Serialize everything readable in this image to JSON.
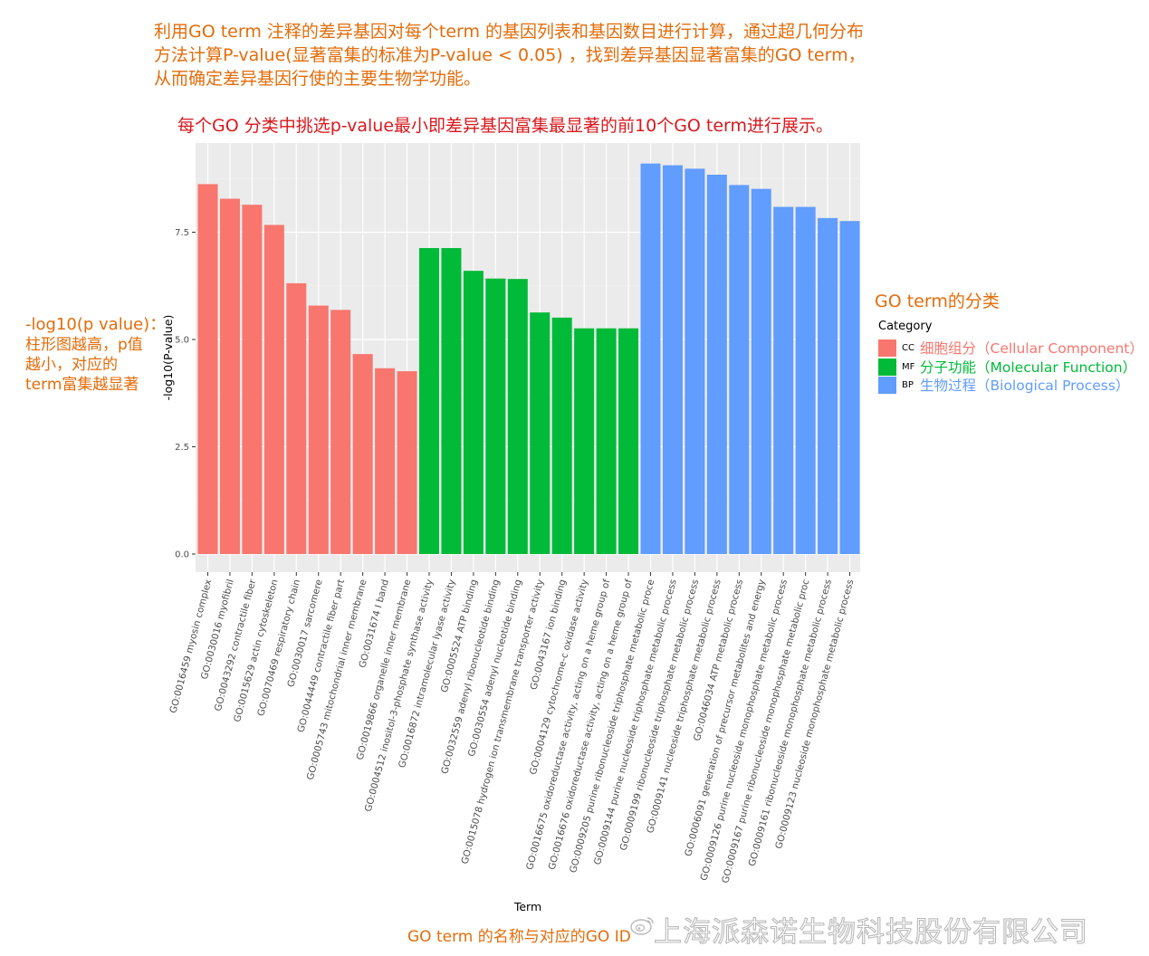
{
  "annotations": {
    "top_note_lines": [
      "利用GO term 注释的差异基因对每个term 的基因列表和基因数目进行计算，通过超几何分布",
      "方法计算P-value(显著富集的标准为P-value < 0.05) ，找到差异基因显著富集的GO term，",
      "从而确定差异基因行使的主要生物学功能。"
    ],
    "sub_note": "每个GO 分类中挑选p-value最小即差异基因富集最显著的前10个GO term进行展示。",
    "left_note_lines": [
      "-log10(p value)：",
      "柱形图越高，p值",
      "越小，对应的",
      "term富集越显著"
    ],
    "legend_heading": "GO term的分类",
    "bottom_note": "GO term 的名称与对应的GO ID",
    "watermark": "上海派森诺生物科技股份有限公司",
    "watermark_icon": "weibo-icon",
    "note_color": "#e36c0a",
    "sub_note_color": "#d9181d"
  },
  "chart_data": {
    "type": "bar",
    "title": "",
    "xlabel": "Term",
    "ylabel": "-log10(P-value)",
    "ylim": [
      0,
      9.3
    ],
    "yticks": [
      0.0,
      2.5,
      5.0,
      7.5
    ],
    "ytick_labels": [
      "0.0",
      "2.5",
      "5.0",
      "7.5"
    ],
    "grid": true,
    "panel_background": "#ebebeb",
    "legend": {
      "title": "Category",
      "placement": "right",
      "entries": [
        {
          "key": "CC",
          "description": "细胞组分（Cellular Component）",
          "color": "#f8766d"
        },
        {
          "key": "MF",
          "description": "分子功能（Molecular Function）",
          "color": "#00ba38"
        },
        {
          "key": "BP",
          "description": "生物过程（Biological Process）",
          "color": "#619cff"
        }
      ]
    },
    "categories": [
      "GO:0016459 myosin complex",
      "GO:0030016 myofibril",
      "GO:0043292 contractile fiber",
      "GO:0015629 actin cytoskeleton",
      "GO:0070469 respiratory chain",
      "GO:0030017 sarcomere",
      "GO:0044449 contractile fiber part",
      "GO:0005743 mitochondrial inner membrane",
      "GO:0031674 I band",
      "GO:0019866 organelle inner membrane",
      "GO:0004512 inositol-3-phosphate synthase activity",
      "GO:0016872 intramolecular lyase activity",
      "GO:0005524 ATP binding",
      "GO:0032559 adenyl ribonucleotide binding",
      "GO:0030554 adenyl nucleotide binding",
      "GO:0015078 hydrogen ion transmembrane transporter activity",
      "GO:0043167 ion binding",
      "GO:0004129 cytochrome-c oxidase activity",
      "GO:0016675 oxidoreductase activity, acting on a heme group of",
      "GO:0016676 oxidoreductase activity, acting on a heme group of",
      "GO:0009205 purine ribonucleoside triphosphate metabolic proce",
      "GO:0009144 purine nucleoside triphosphate metabolic process",
      "GO:0009199 ribonucleoside triphosphate metabolic process",
      "GO:0009141 nucleoside triphosphate metabolic process",
      "GO:0046034 ATP metabolic process",
      "GO:0006091 generation of precursor metabolites and energy",
      "GO:0009126 purine nucleoside monophosphate metabolic process",
      "GO:0009167 purine ribonucleoside monophosphate metabolic proc",
      "GO:0009161 ribonucleoside monophosphate metabolic process",
      "GO:0009123 nucleoside monophosphate metabolic process"
    ],
    "values": [
      8.62,
      8.28,
      8.14,
      7.67,
      6.31,
      5.79,
      5.69,
      4.66,
      4.33,
      4.26,
      7.13,
      7.13,
      6.6,
      6.42,
      6.41,
      5.63,
      5.51,
      5.26,
      5.26,
      5.26,
      9.1,
      9.06,
      8.98,
      8.84,
      8.6,
      8.51,
      8.09,
      8.09,
      7.83,
      7.76
    ],
    "category_group": [
      "CC",
      "CC",
      "CC",
      "CC",
      "CC",
      "CC",
      "CC",
      "CC",
      "CC",
      "CC",
      "MF",
      "MF",
      "MF",
      "MF",
      "MF",
      "MF",
      "MF",
      "MF",
      "MF",
      "MF",
      "BP",
      "BP",
      "BP",
      "BP",
      "BP",
      "BP",
      "BP",
      "BP",
      "BP",
      "BP"
    ]
  }
}
